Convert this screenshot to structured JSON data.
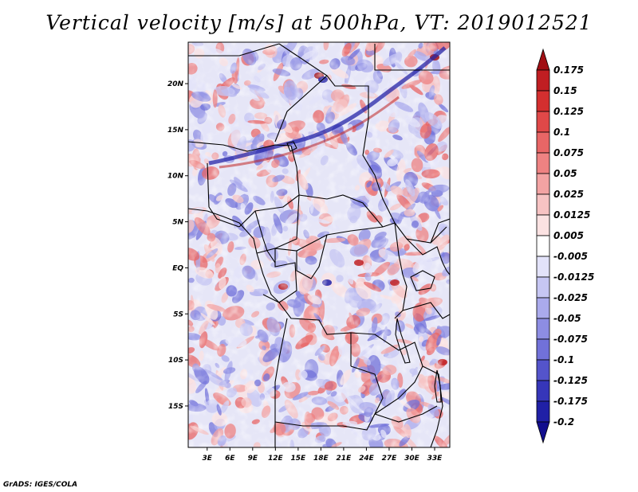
{
  "title": "Vertical velocity [m/s] at 500hPa, VT: 2019012521",
  "credit": "GrADS: IGES/COLA",
  "lat_labels": [
    "20N",
    "15N",
    "10N",
    "5N",
    "EQ",
    "5S",
    "10S",
    "15S"
  ],
  "lat_values": [
    20,
    15,
    10,
    5,
    0,
    -5,
    -10,
    -15
  ],
  "lon_labels": [
    "3E",
    "6E",
    "9E",
    "12E",
    "15E",
    "18E",
    "21E",
    "24E",
    "27E",
    "30E",
    "33E"
  ],
  "lon_values": [
    3,
    6,
    9,
    12,
    15,
    18,
    21,
    24,
    27,
    30,
    33
  ],
  "map_extent": {
    "lon_min": 0.5,
    "lon_max": 35,
    "lat_min": -19.5,
    "lat_max": 24.5
  },
  "colorbar": {
    "labels": [
      "0.175",
      "0.15",
      "0.125",
      "0.1",
      "0.075",
      "0.05",
      "0.025",
      "0.0125",
      "0.005",
      "-0.005",
      "-0.0125",
      "-0.025",
      "-0.05",
      "-0.075",
      "-0.1",
      "-0.125",
      "-0.175",
      "-0.2"
    ],
    "colors": [
      "#a10f14",
      "#c01e22",
      "#d42f2f",
      "#e04848",
      "#e86666",
      "#ee8282",
      "#f3a3a3",
      "#f7c3c3",
      "#fbe2e2",
      "#ffffff",
      "#e3e3fa",
      "#c6c6f3",
      "#aaaaec",
      "#8d8de3",
      "#7171d9",
      "#5454cb",
      "#3636b9",
      "#2020a6",
      "#120e8e"
    ]
  },
  "colors": {
    "positive": "#d03030",
    "negative": "#3030c0",
    "border": "#000000"
  }
}
